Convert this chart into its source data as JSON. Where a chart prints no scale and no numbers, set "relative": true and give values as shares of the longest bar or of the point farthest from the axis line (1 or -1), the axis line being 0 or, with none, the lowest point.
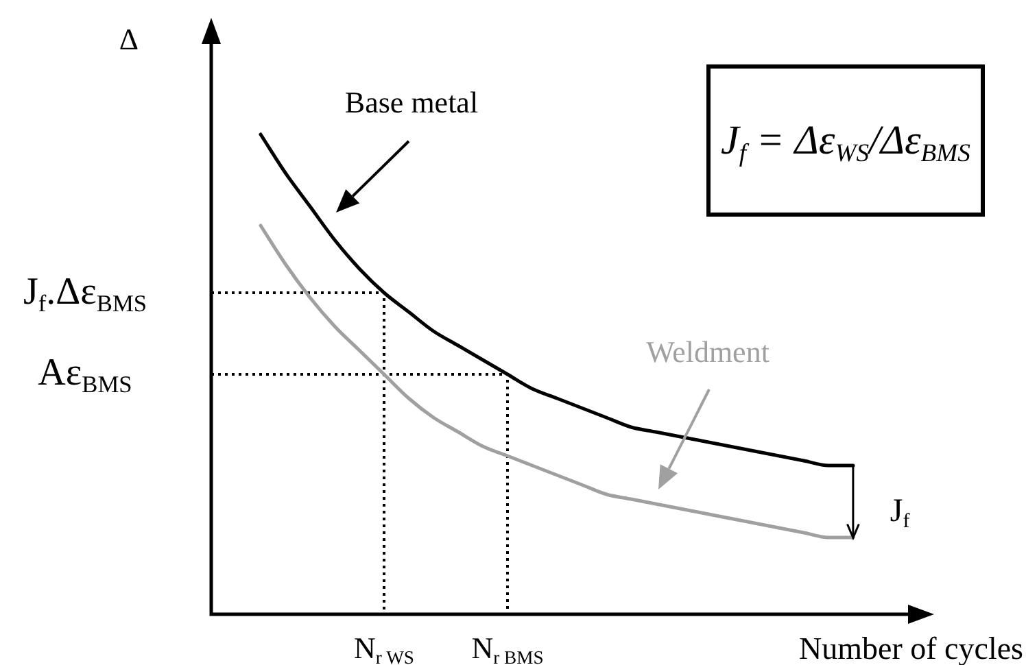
{
  "chart_data": {
    "type": "line",
    "relative": true,
    "xlabel": "Number of cycles",
    "ylabel": "Δ",
    "categories": [
      null,
      null,
      null,
      null,
      null,
      null,
      null,
      "N$_{r WS}$",
      null,
      null,
      null,
      null,
      "N$_{r BMS}$",
      null,
      null,
      null,
      null,
      null,
      null,
      null,
      null,
      null,
      null,
      null,
      null,
      null,
      null,
      null,
      null,
      null
    ],
    "series": [
      {
        "name": "Base metal",
        "color": "#000000",
        "values": [
          null,
          null,
          1,
          0.92,
          0.85,
          0.78,
          0.72,
          0.67,
          0.63,
          0.59,
          0.56,
          0.53,
          0.5,
          0.47,
          0.45,
          0.43,
          0.41,
          0.39,
          0.38,
          0.37,
          0.36,
          0.35,
          0.34,
          0.33,
          0.32,
          0.31,
          0.31,
          null,
          null,
          null
        ]
      },
      {
        "name": "Weldment",
        "color": "#a0a0a0",
        "values": [
          null,
          null,
          0.81,
          0.73,
          0.66,
          0.6,
          0.55,
          0.5,
          0.45,
          0.41,
          0.38,
          0.35,
          0.33,
          0.31,
          0.29,
          0.27,
          0.25,
          0.24,
          0.23,
          0.22,
          0.21,
          0.2,
          0.19,
          0.18,
          0.17,
          0.16,
          0.16,
          null,
          null,
          null
        ]
      }
    ],
    "ref_lines": [
      {
        "axis": "y",
        "value": 0.67,
        "label": "J$_{f}$.Δε$_{BMS}$",
        "color": "#000000",
        "line_style": "dotted"
      },
      {
        "axis": "y",
        "value": 0.5,
        "label": "Aε$_{BMS}$",
        "color": "#000000",
        "line_style": "dotted"
      }
    ],
    "annotations": [
      "J$_{f}$ = Δε$_{WS}$/Δε$_{BMS}$",
      "J$_{f}$"
    ]
  }
}
